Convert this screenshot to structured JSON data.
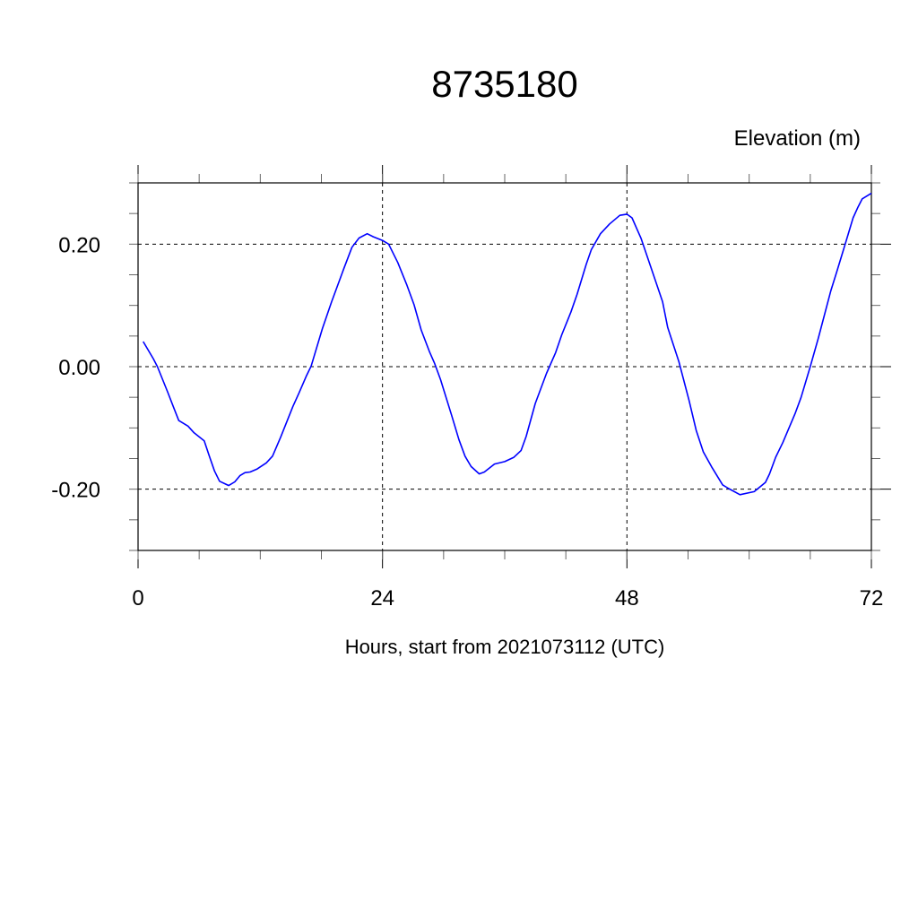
{
  "chart_data": {
    "type": "line",
    "title": "8735180",
    "ylabel": "Elevation (m)",
    "xlabel": "Hours, start from 2021073112 (UTC)",
    "xlim": [
      0,
      72
    ],
    "ylim": [
      -0.3,
      0.3
    ],
    "x_ticks": [
      0,
      24,
      48,
      72
    ],
    "x_tick_labels": [
      "0",
      "24",
      "48",
      "72"
    ],
    "y_ticks": [
      0.2,
      0.0,
      -0.2
    ],
    "y_tick_labels": [
      "0.20",
      "0.00",
      "-0.20"
    ],
    "grid": true,
    "series": [
      {
        "color": "#0000ff",
        "x": [
          0.5,
          1.5,
          1.9,
          2.9,
          3.5,
          4.0,
          4.9,
          5.5,
          6.5,
          7.0,
          7.5,
          8.0,
          8.9,
          9.5,
          10.0,
          10.5,
          11.0,
          11.7,
          12.6,
          13.2,
          14.0,
          15.2,
          15.8,
          16.5,
          17.0,
          18.1,
          19.0,
          20.2,
          21.0,
          21.7,
          22.5,
          23.1,
          24.0,
          24.6,
          25.5,
          26.4,
          27.1,
          27.8,
          28.6,
          29.1,
          29.7,
          30.8,
          31.5,
          32.1,
          32.7,
          33.5,
          34.0,
          35.0,
          36.0,
          36.9,
          37.6,
          38.1,
          39.0,
          40.1,
          41.0,
          41.6,
          42.5,
          43.1,
          44.0,
          44.5,
          45.4,
          46.3,
          47.3,
          48.0,
          48.5,
          49.4,
          50.4,
          51.5,
          52.0,
          53.1,
          54.1,
          54.8,
          55.5,
          56.3,
          57.4,
          58.0,
          59.1,
          60.5,
          61.6,
          62.0,
          62.6,
          63.3,
          64.5,
          65.1,
          66.0,
          66.8,
          68.0,
          68.6,
          69.5,
          70.2,
          70.7,
          71.1,
          72.0
        ],
        "y": [
          0.041,
          0.013,
          0.0,
          -0.041,
          -0.067,
          -0.088,
          -0.097,
          -0.108,
          -0.121,
          -0.146,
          -0.17,
          -0.187,
          -0.194,
          -0.188,
          -0.178,
          -0.173,
          -0.172,
          -0.167,
          -0.157,
          -0.146,
          -0.115,
          -0.065,
          -0.043,
          -0.016,
          0.001,
          0.062,
          0.106,
          0.16,
          0.195,
          0.21,
          0.217,
          0.212,
          0.206,
          0.2,
          0.17,
          0.133,
          0.101,
          0.06,
          0.025,
          0.006,
          -0.021,
          -0.08,
          -0.119,
          -0.146,
          -0.163,
          -0.175,
          -0.172,
          -0.159,
          -0.155,
          -0.148,
          -0.137,
          -0.114,
          -0.06,
          -0.011,
          0.023,
          0.052,
          0.089,
          0.118,
          0.167,
          0.191,
          0.217,
          0.233,
          0.247,
          0.249,
          0.243,
          0.209,
          0.16,
          0.106,
          0.064,
          0.008,
          -0.055,
          -0.104,
          -0.139,
          -0.163,
          -0.193,
          -0.199,
          -0.209,
          -0.204,
          -0.189,
          -0.175,
          -0.148,
          -0.124,
          -0.077,
          -0.05,
          0.0,
          0.047,
          0.123,
          0.155,
          0.204,
          0.243,
          0.261,
          0.274,
          0.283
        ]
      }
    ]
  }
}
